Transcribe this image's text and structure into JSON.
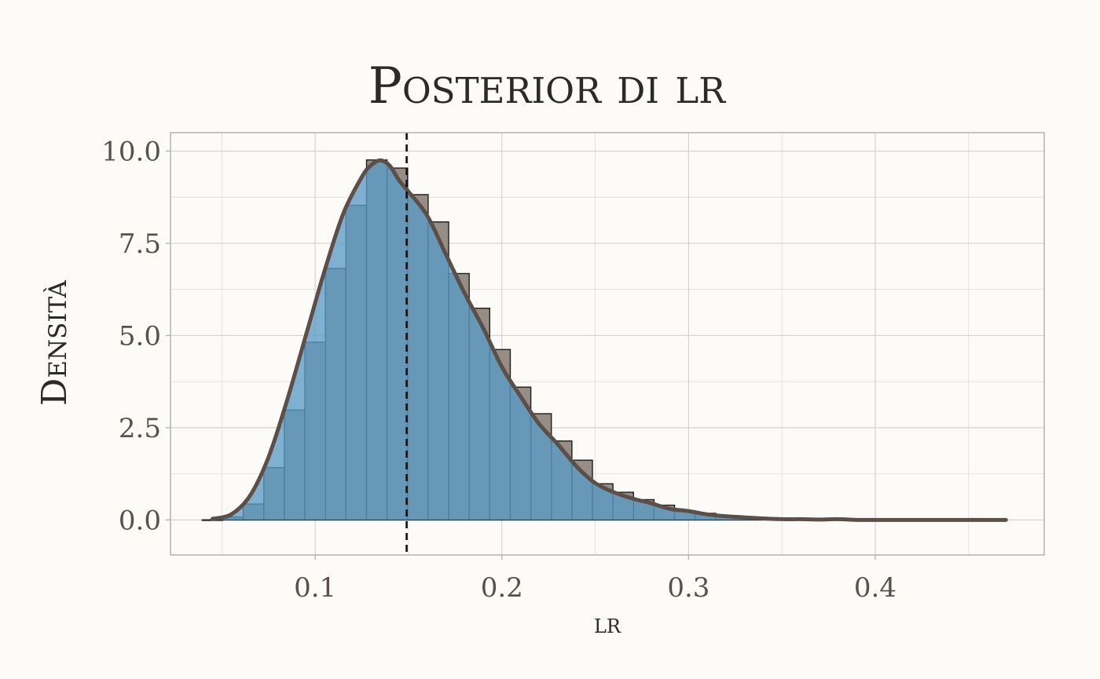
{
  "chart_data": {
    "type": "histogram",
    "title": "Posterior di lr",
    "xlabel": "lr",
    "ylabel": "Densità",
    "xlim": [
      0.0225,
      0.4905
    ],
    "ylim": [
      -0.95,
      10.5
    ],
    "x_ticks": [
      0.1,
      0.2,
      0.3,
      0.4
    ],
    "x_tick_labels": [
      "0.1",
      "0.2",
      "0.3",
      "0.4"
    ],
    "y_ticks": [
      0,
      2.5,
      5,
      7.5,
      10
    ],
    "y_tick_labels": [
      "0.0",
      "2.5",
      "5.0",
      "7.5",
      "10.0"
    ],
    "grid": true,
    "reference_line": {
      "x": 0.149,
      "style": "dashed"
    },
    "bin_width": 0.011,
    "bins": [
      {
        "x0": 0.0395,
        "density": 0.0
      },
      {
        "x0": 0.0505,
        "density": 0.08
      },
      {
        "x0": 0.0615,
        "density": 0.43
      },
      {
        "x0": 0.0725,
        "density": 1.42
      },
      {
        "x0": 0.0835,
        "density": 2.98
      },
      {
        "x0": 0.0945,
        "density": 4.82
      },
      {
        "x0": 0.1055,
        "density": 6.82
      },
      {
        "x0": 0.1165,
        "density": 8.53
      },
      {
        "x0": 0.1275,
        "density": 9.76
      },
      {
        "x0": 0.1385,
        "density": 9.54
      },
      {
        "x0": 0.1495,
        "density": 8.82
      },
      {
        "x0": 0.1605,
        "density": 8.08
      },
      {
        "x0": 0.1715,
        "density": 6.68
      },
      {
        "x0": 0.1825,
        "density": 5.74
      },
      {
        "x0": 0.1935,
        "density": 4.62
      },
      {
        "x0": 0.2045,
        "density": 3.6
      },
      {
        "x0": 0.2155,
        "density": 2.88
      },
      {
        "x0": 0.2265,
        "density": 2.14
      },
      {
        "x0": 0.2375,
        "density": 1.62
      },
      {
        "x0": 0.2485,
        "density": 0.98
      },
      {
        "x0": 0.2595,
        "density": 0.75
      },
      {
        "x0": 0.2705,
        "density": 0.55
      },
      {
        "x0": 0.2815,
        "density": 0.4
      },
      {
        "x0": 0.2925,
        "density": 0.25
      },
      {
        "x0": 0.3035,
        "density": 0.18
      },
      {
        "x0": 0.3145,
        "density": 0.12
      },
      {
        "x0": 0.3255,
        "density": 0.08
      },
      {
        "x0": 0.3365,
        "density": 0.06
      },
      {
        "x0": 0.3475,
        "density": 0.04
      },
      {
        "x0": 0.3585,
        "density": 0.03
      },
      {
        "x0": 0.3695,
        "density": 0.02
      },
      {
        "x0": 0.3805,
        "density": 0.02
      },
      {
        "x0": 0.3915,
        "density": 0.01
      },
      {
        "x0": 0.4025,
        "density": 0.01
      },
      {
        "x0": 0.4135,
        "density": 0.0
      },
      {
        "x0": 0.4245,
        "density": 0.0
      },
      {
        "x0": 0.4355,
        "density": 0.0
      },
      {
        "x0": 0.4465,
        "density": 0.0
      },
      {
        "x0": 0.4575,
        "density": 0.0
      }
    ],
    "density_curve": {
      "x": [
        0.045,
        0.055,
        0.065,
        0.075,
        0.085,
        0.095,
        0.105,
        0.115,
        0.125,
        0.13,
        0.135,
        0.14,
        0.145,
        0.15,
        0.16,
        0.17,
        0.18,
        0.19,
        0.2,
        0.21,
        0.22,
        0.23,
        0.24,
        0.25,
        0.26,
        0.27,
        0.28,
        0.29,
        0.3,
        0.31,
        0.32,
        0.33,
        0.34,
        0.35,
        0.36,
        0.37,
        0.38,
        0.39,
        0.4,
        0.42,
        0.44,
        0.46,
        0.47
      ],
      "y": [
        0.03,
        0.15,
        0.65,
        1.7,
        3.25,
        5.0,
        6.75,
        8.3,
        9.3,
        9.62,
        9.75,
        9.6,
        9.2,
        8.9,
        8.25,
        7.2,
        6.15,
        5.2,
        4.15,
        3.35,
        2.6,
        2.05,
        1.45,
        1.0,
        0.75,
        0.58,
        0.45,
        0.3,
        0.24,
        0.15,
        0.1,
        0.07,
        0.04,
        0.02,
        0.02,
        0.01,
        0.02,
        0.0,
        0.0,
        0.0,
        0.0,
        0.0,
        0.0
      ]
    },
    "colors": {
      "background": "#fcfbf8",
      "grid": "#d3d3d3",
      "panel_border": "#b3b3b3",
      "histogram_fill": "#968d85",
      "histogram_outline": "#1f1c1a",
      "density_fill": "#5a9bc6",
      "density_line": "#5b5049",
      "reference_line": "#111111"
    }
  }
}
